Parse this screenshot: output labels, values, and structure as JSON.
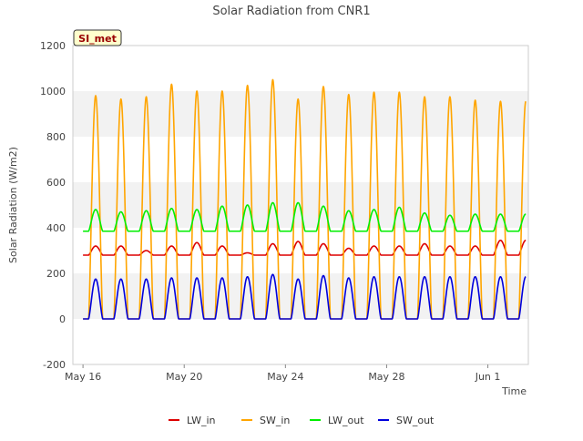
{
  "chart_data": {
    "type": "line",
    "title": "Solar Radiation from CNR1",
    "xlabel": "Time",
    "ylabel": "Solar Radiation (W/m2)",
    "ylim": [
      -200,
      1200
    ],
    "yticks": [
      -200,
      0,
      200,
      400,
      600,
      800,
      1000,
      1200
    ],
    "xlim_days": [
      15.6,
      33.6
    ],
    "xticks": [
      {
        "label": "May 16",
        "day": 16
      },
      {
        "label": "May 20",
        "day": 20
      },
      {
        "label": "May 24",
        "day": 24
      },
      {
        "label": "May 28",
        "day": 28
      },
      {
        "label": "Jun 1",
        "day": 32
      }
    ],
    "x_range": [
      "May 16 00:00",
      "Jun 2 12:00"
    ],
    "grid": "horizontal alternating bands",
    "legend_position": "bottom-center",
    "station_label": "SI_met",
    "series": [
      {
        "name": "LW_in",
        "color": "#dd0000",
        "night": 280,
        "day_peaks": [
          320,
          320,
          300,
          320,
          335,
          320,
          290,
          330,
          340,
          330,
          310,
          320,
          320,
          330,
          320,
          320,
          345
        ]
      },
      {
        "name": "SW_in",
        "color": "#ffa500",
        "night": 0,
        "day_peaks": [
          980,
          965,
          975,
          1030,
          1000,
          1000,
          1025,
          1050,
          965,
          1020,
          985,
          995,
          995,
          975,
          975,
          960,
          955
        ]
      },
      {
        "name": "LW_out",
        "color": "#00ee00",
        "night": 385,
        "day_peaks": [
          480,
          470,
          475,
          485,
          480,
          495,
          500,
          510,
          510,
          495,
          475,
          480,
          490,
          465,
          455,
          460,
          460
        ]
      },
      {
        "name": "SW_out",
        "color": "#0000dd",
        "night": 0,
        "day_peaks": [
          175,
          175,
          175,
          180,
          180,
          180,
          185,
          195,
          175,
          190,
          180,
          185,
          185,
          185,
          185,
          185,
          185
        ]
      }
    ]
  }
}
